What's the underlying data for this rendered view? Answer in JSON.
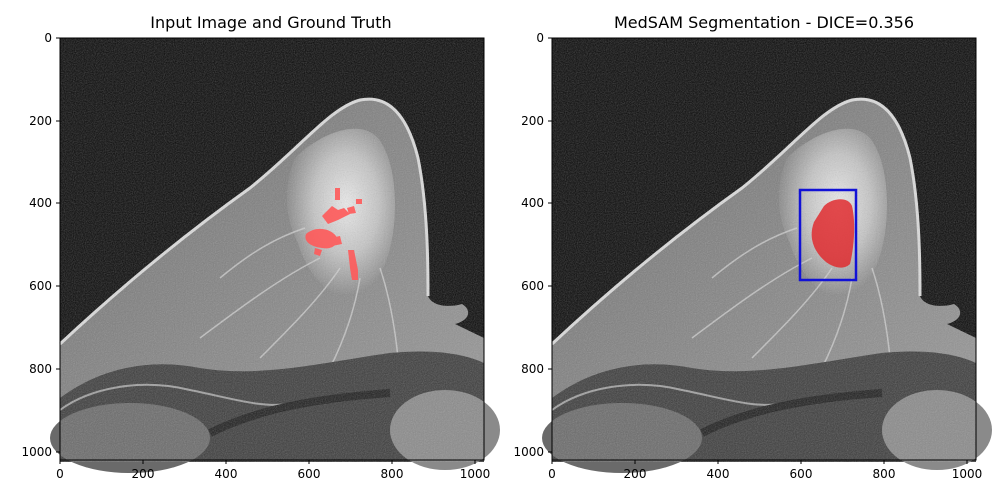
{
  "panels": [
    {
      "title": "Input Image and Ground Truth",
      "x_ticks": [
        "0",
        "200",
        "400",
        "600",
        "800",
        "1000"
      ],
      "y_ticks": [
        "0",
        "200",
        "400",
        "600",
        "800",
        "1000"
      ],
      "overlay": "ground-truth-mask",
      "overlay_color": "#ff5a5a"
    },
    {
      "title": "MedSAM Segmentation - DICE=0.356",
      "x_ticks": [
        "0",
        "200",
        "400",
        "600",
        "800",
        "1000"
      ],
      "y_ticks": [
        "0",
        "200",
        "400",
        "600",
        "800",
        "1000"
      ],
      "overlay": "predicted-mask-and-box",
      "overlay_color": "#e0262a",
      "box_color": "#1212d6"
    }
  ],
  "colors": {
    "background": "#ffffff",
    "image_dark": "#080808",
    "tissue": "#8c8c8c"
  }
}
